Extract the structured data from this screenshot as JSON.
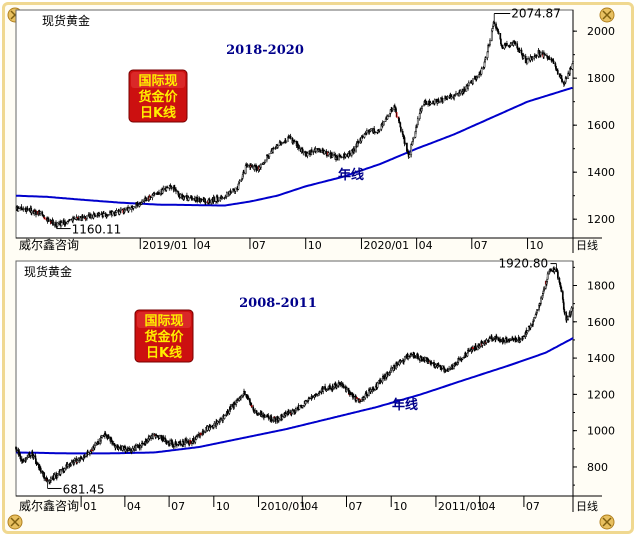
{
  "colors": {
    "frame": "#f0d890",
    "candle": "#000000",
    "up_candle": "#ffffff",
    "down_accent": "#e00000",
    "annual_line": "#0000cc",
    "label_text": "#00008b",
    "badge_bg": "#cc1010",
    "badge_text": "#ffee00",
    "corner_bolt": "#e8c060"
  },
  "chart_data": [
    {
      "type": "candlestick",
      "symbol": "现货黄金",
      "title": "2018-2020",
      "badge": [
        "国际现",
        "货金价",
        "日K线"
      ],
      "source": "威尔鑫咨询",
      "period_label": "日线",
      "ma_label": "年线",
      "x_tick_labels": [
        "2019/01",
        "04",
        "07",
        "10",
        "2020/01",
        "04",
        "07",
        "10"
      ],
      "y_ticks": [
        1200,
        1400,
        1600,
        1800,
        2000
      ],
      "y_tick_labels": [
        "1200",
        "1400",
        "1600",
        "1800",
        "2000"
      ],
      "ylim": [
        1120,
        2090
      ],
      "low_label": "1160.11",
      "high_label": "2074.87",
      "low": {
        "x": "2018-08-16",
        "y": 1160.11
      },
      "high": {
        "x": "2020-08-07",
        "y": 2074.87
      },
      "xlim": [
        "2018-06-10",
        "2020-12-15"
      ],
      "x_tick_dates": [
        "2019-01-01",
        "2019-04-01",
        "2019-07-01",
        "2019-10-01",
        "2020-01-01",
        "2020-04-01",
        "2020-07-01",
        "2020-10-01"
      ],
      "price_path": [
        [
          "2018-06-10",
          1245
        ],
        [
          "2018-07-01",
          1240
        ],
        [
          "2018-07-20",
          1222
        ],
        [
          "2018-08-16",
          1175
        ],
        [
          "2018-09-10",
          1198
        ],
        [
          "2018-10-15",
          1215
        ],
        [
          "2018-11-15",
          1222
        ],
        [
          "2018-12-15",
          1245
        ],
        [
          "2019-01-15",
          1290
        ],
        [
          "2019-02-20",
          1340
        ],
        [
          "2019-03-10",
          1295
        ],
        [
          "2019-04-20",
          1275
        ],
        [
          "2019-05-15",
          1290
        ],
        [
          "2019-06-10",
          1330
        ],
        [
          "2019-06-25",
          1425
        ],
        [
          "2019-07-15",
          1415
        ],
        [
          "2019-08-10",
          1505
        ],
        [
          "2019-09-05",
          1545
        ],
        [
          "2019-10-01",
          1475
        ],
        [
          "2019-10-20",
          1495
        ],
        [
          "2019-11-20",
          1460
        ],
        [
          "2019-12-15",
          1478
        ],
        [
          "2020-01-08",
          1575
        ],
        [
          "2020-01-30",
          1580
        ],
        [
          "2020-02-24",
          1680
        ],
        [
          "2020-03-19",
          1470
        ],
        [
          "2020-04-10",
          1690
        ],
        [
          "2020-05-10",
          1705
        ],
        [
          "2020-06-10",
          1730
        ],
        [
          "2020-06-30",
          1780
        ],
        [
          "2020-07-20",
          1840
        ],
        [
          "2020-08-07",
          2040
        ],
        [
          "2020-08-20",
          1935
        ],
        [
          "2020-09-10",
          1950
        ],
        [
          "2020-09-28",
          1870
        ],
        [
          "2020-10-20",
          1910
        ],
        [
          "2020-11-10",
          1880
        ],
        [
          "2020-11-30",
          1775
        ],
        [
          "2020-12-15",
          1860
        ]
      ],
      "ma_path": [
        [
          "2018-06-10",
          1300
        ],
        [
          "2018-08-01",
          1295
        ],
        [
          "2018-10-01",
          1282
        ],
        [
          "2018-12-01",
          1270
        ],
        [
          "2019-02-01",
          1262
        ],
        [
          "2019-04-01",
          1260
        ],
        [
          "2019-05-20",
          1258
        ],
        [
          "2019-07-01",
          1275
        ],
        [
          "2019-08-15",
          1300
        ],
        [
          "2019-10-01",
          1340
        ],
        [
          "2019-12-01",
          1380
        ],
        [
          "2020-02-01",
          1435
        ],
        [
          "2020-04-01",
          1500
        ],
        [
          "2020-06-01",
          1560
        ],
        [
          "2020-08-01",
          1630
        ],
        [
          "2020-10-01",
          1700
        ],
        [
          "2020-12-15",
          1760
        ]
      ]
    },
    {
      "type": "candlestick",
      "symbol": "现货黄金",
      "title": "2008-2011",
      "badge": [
        "国际现",
        "货金价",
        "日K线"
      ],
      "source": "威尔鑫咨询",
      "period_label": "日线",
      "ma_label": "年线",
      "x_tick_labels": [
        "01",
        "04",
        "07",
        "10",
        "2010/01",
        "04",
        "07",
        "10",
        "2011/01",
        "04",
        "07"
      ],
      "y_ticks": [
        800,
        1000,
        1200,
        1400,
        1600,
        1800
      ],
      "y_tick_labels": [
        "800",
        "1000",
        "1200",
        "1400",
        "1600",
        "1800"
      ],
      "ylim": [
        640,
        1935
      ],
      "low_label": "681.45",
      "high_label": "1920.80",
      "low": {
        "x": "2008-10-24",
        "y": 681.45
      },
      "high": {
        "x": "2011-09-06",
        "y": 1920.8
      },
      "xlim": [
        "2008-08-20",
        "2011-10-10"
      ],
      "x_tick_dates": [
        "2009-01-01",
        "2009-04-01",
        "2009-07-01",
        "2009-10-01",
        "2010-01-01",
        "2010-04-01",
        "2010-07-01",
        "2010-10-01",
        "2011-01-01",
        "2011-04-01",
        "2011-07-01"
      ],
      "price_path": [
        [
          "2008-08-20",
          910
        ],
        [
          "2008-09-01",
          830
        ],
        [
          "2008-09-20",
          880
        ],
        [
          "2008-10-24",
          715
        ],
        [
          "2008-11-15",
          760
        ],
        [
          "2008-12-10",
          820
        ],
        [
          "2009-01-10",
          860
        ],
        [
          "2009-02-20",
          985
        ],
        [
          "2009-03-10",
          915
        ],
        [
          "2009-04-15",
          890
        ],
        [
          "2009-06-01",
          975
        ],
        [
          "2009-07-10",
          925
        ],
        [
          "2009-08-20",
          945
        ],
        [
          "2009-09-15",
          1005
        ],
        [
          "2009-10-15",
          1055
        ],
        [
          "2009-12-02",
          1215
        ],
        [
          "2009-12-25",
          1100
        ],
        [
          "2010-02-05",
          1060
        ],
        [
          "2010-03-15",
          1110
        ],
        [
          "2010-05-15",
          1230
        ],
        [
          "2010-06-20",
          1255
        ],
        [
          "2010-07-25",
          1160
        ],
        [
          "2010-09-01",
          1250
        ],
        [
          "2010-10-15",
          1370
        ],
        [
          "2010-11-10",
          1420
        ],
        [
          "2010-12-15",
          1385
        ],
        [
          "2011-01-25",
          1330
        ],
        [
          "2011-03-01",
          1420
        ],
        [
          "2011-04-25",
          1510
        ],
        [
          "2011-05-20",
          1500
        ],
        [
          "2011-06-25",
          1500
        ],
        [
          "2011-07-20",
          1600
        ],
        [
          "2011-08-10",
          1760
        ],
        [
          "2011-08-22",
          1880
        ],
        [
          "2011-09-06",
          1890
        ],
        [
          "2011-09-15",
          1780
        ],
        [
          "2011-09-26",
          1600
        ],
        [
          "2011-10-10",
          1680
        ]
      ],
      "ma_path": [
        [
          "2008-08-20",
          880
        ],
        [
          "2008-12-01",
          875
        ],
        [
          "2009-03-01",
          875
        ],
        [
          "2009-06-01",
          880
        ],
        [
          "2009-09-01",
          910
        ],
        [
          "2009-12-01",
          960
        ],
        [
          "2010-03-01",
          1010
        ],
        [
          "2010-06-01",
          1070
        ],
        [
          "2010-09-01",
          1130
        ],
        [
          "2010-12-01",
          1200
        ],
        [
          "2011-03-01",
          1280
        ],
        [
          "2011-06-01",
          1360
        ],
        [
          "2011-08-15",
          1430
        ],
        [
          "2011-10-10",
          1510
        ]
      ]
    }
  ]
}
